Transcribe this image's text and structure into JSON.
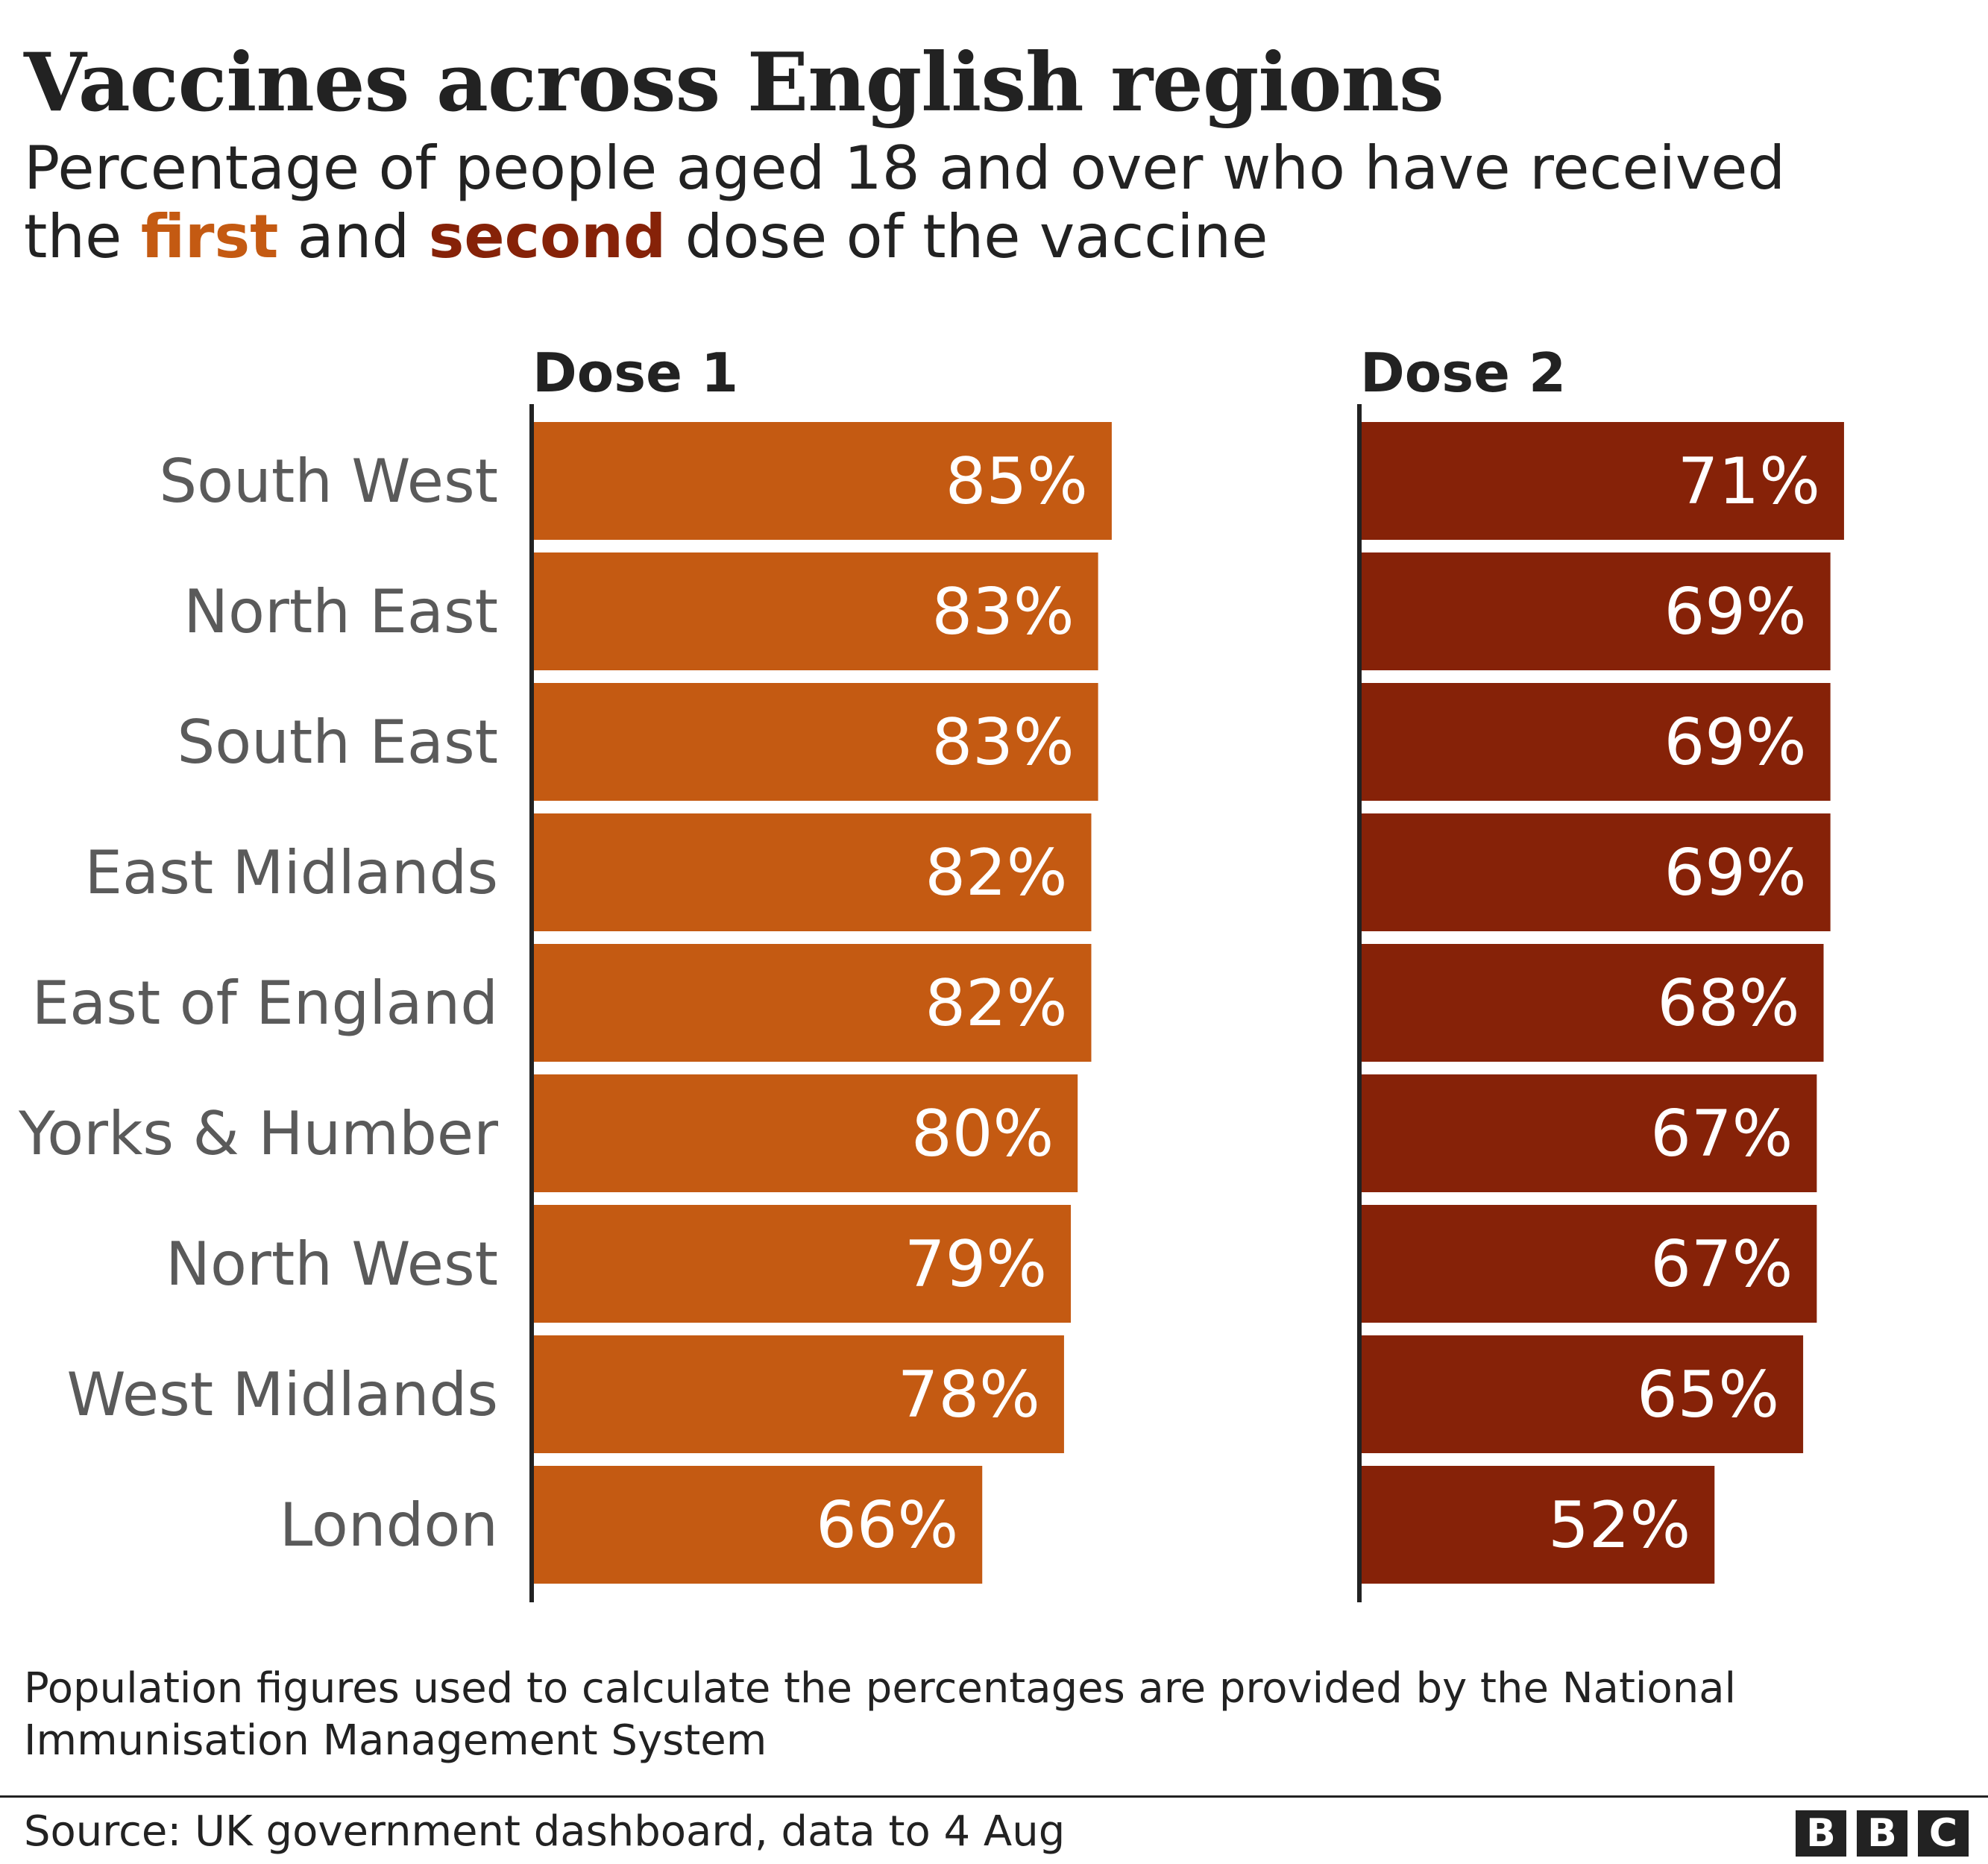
{
  "title": "Vaccines across English regions",
  "subtitle": {
    "line1": "Percentage of people aged 18 and over who have received",
    "pre": "the ",
    "first_word": "first",
    "mid": " and ",
    "second_word": "second",
    "post": " dose of the vaccine"
  },
  "colors": {
    "dose1": "#c45a12",
    "dose2": "#862208",
    "axis": "#222222",
    "label": "#5a5a5a"
  },
  "chart_data": {
    "type": "bar",
    "orientation": "horizontal",
    "categories": [
      "South West",
      "North East",
      "South East",
      "East Midlands",
      "East of England",
      "Yorks & Humber",
      "North West",
      "West Midlands",
      "London"
    ],
    "series": [
      {
        "name": "Dose 1",
        "values": [
          85,
          83,
          83,
          82,
          82,
          80,
          79,
          78,
          66
        ],
        "labels": [
          "85%",
          "83%",
          "83%",
          "82%",
          "82%",
          "80%",
          "79%",
          "78%",
          "66%"
        ]
      },
      {
        "name": "Dose 2",
        "values": [
          71,
          69,
          69,
          69,
          68,
          67,
          67,
          65,
          52
        ],
        "labels": [
          "71%",
          "69%",
          "69%",
          "69%",
          "68%",
          "67%",
          "67%",
          "65%",
          "52%"
        ]
      }
    ],
    "xlim": [
      0,
      100
    ],
    "grid": false,
    "legend": "none"
  },
  "note": "Population figures used to calculate the percentages are provided by the National Immunisation Management System",
  "source": "Source: UK government dashboard, data to 4 Aug",
  "logo": [
    "B",
    "B",
    "C"
  ]
}
